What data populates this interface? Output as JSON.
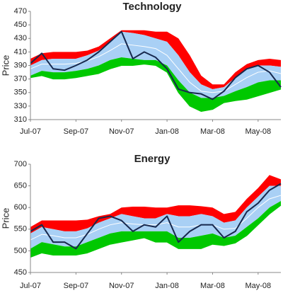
{
  "chart_data": [
    {
      "type": "band-line",
      "title": "Technology",
      "y_label": "Price",
      "x": [
        0,
        0.5,
        1,
        1.5,
        2,
        2.5,
        3,
        3.5,
        4,
        4.5,
        5,
        5.5,
        6,
        6.5,
        7,
        7.5,
        8,
        8.5,
        9,
        9.5,
        10,
        10.5,
        11
      ],
      "xlim": [
        0,
        11
      ],
      "xticks": [
        {
          "value": 0,
          "label": "Jul-07"
        },
        {
          "value": 2,
          "label": "Sep-07"
        },
        {
          "value": 4,
          "label": "Nov-07"
        },
        {
          "value": 6,
          "label": "Jan-08"
        },
        {
          "value": 8,
          "label": "Mar-08"
        },
        {
          "value": 10,
          "label": "May-08"
        }
      ],
      "ylim": [
        310,
        470
      ],
      "yticks": [
        310,
        330,
        350,
        370,
        390,
        410,
        430,
        450,
        470
      ],
      "grid": false,
      "series": [
        {
          "style": "band",
          "color": "#ff0000",
          "values": [
            400,
            408,
            410,
            410,
            410,
            412,
            418,
            430,
            442,
            442,
            442,
            440,
            440,
            430,
            405,
            375,
            362,
            362,
            380,
            392,
            398,
            400,
            398
          ]
        },
        {
          "style": "band",
          "color": "#a9d0f5",
          "values": [
            390,
            398,
            400,
            400,
            400,
            405,
            412,
            425,
            440,
            438,
            435,
            430,
            425,
            405,
            380,
            362,
            355,
            358,
            372,
            385,
            390,
            390,
            388
          ]
        },
        {
          "style": "line",
          "color": "#ffffff",
          "values": [
            385,
            392,
            392,
            392,
            393,
            397,
            403,
            412,
            422,
            420,
            418,
            415,
            405,
            385,
            365,
            352,
            350,
            352,
            362,
            372,
            380,
            382,
            378
          ]
        },
        {
          "style": "band",
          "color": "#00c800",
          "values": [
            375,
            382,
            380,
            380,
            382,
            385,
            390,
            398,
            402,
            400,
            398,
            398,
            390,
            368,
            350,
            342,
            342,
            345,
            352,
            358,
            365,
            368,
            368
          ]
        },
        {
          "style": "edge",
          "color": "#00c800",
          "values": [
            372,
            375,
            370,
            370,
            372,
            375,
            378,
            385,
            390,
            390,
            392,
            390,
            380,
            350,
            330,
            322,
            325,
            335,
            338,
            340,
            345,
            350,
            355
          ]
        },
        {
          "style": "line",
          "color": "#17284d",
          "values": [
            393,
            408,
            385,
            383,
            390,
            398,
            410,
            425,
            440,
            400,
            410,
            402,
            385,
            355,
            350,
            348,
            340,
            352,
            372,
            385,
            390,
            380,
            358
          ]
        }
      ]
    },
    {
      "type": "band-line",
      "title": "Energy",
      "y_label": "Price",
      "x": [
        0,
        0.5,
        1,
        1.5,
        2,
        2.5,
        3,
        3.5,
        4,
        4.5,
        5,
        5.5,
        6,
        6.5,
        7,
        7.5,
        8,
        8.5,
        9,
        9.5,
        10,
        10.5,
        11
      ],
      "xlim": [
        0,
        11
      ],
      "xticks": [
        {
          "value": 0,
          "label": "Jul-07"
        },
        {
          "value": 2,
          "label": "Sep-07"
        },
        {
          "value": 4,
          "label": "Nov-07"
        },
        {
          "value": 6,
          "label": "Jan-08"
        },
        {
          "value": 8,
          "label": "Mar-08"
        },
        {
          "value": 10,
          "label": "May-08"
        }
      ],
      "ylim": [
        450,
        700
      ],
      "yticks": [
        450,
        500,
        550,
        600,
        650,
        700
      ],
      "grid": false,
      "series": [
        {
          "style": "band",
          "color": "#ff0000",
          "values": [
            555,
            570,
            570,
            570,
            570,
            572,
            580,
            585,
            600,
            602,
            602,
            600,
            600,
            605,
            605,
            603,
            600,
            585,
            590,
            620,
            645,
            675,
            665
          ]
        },
        {
          "style": "band",
          "color": "#a9d0f5",
          "values": [
            540,
            555,
            550,
            545,
            545,
            552,
            565,
            575,
            585,
            580,
            575,
            575,
            585,
            580,
            580,
            585,
            580,
            565,
            570,
            600,
            625,
            650,
            650
          ]
        },
        {
          "style": "line",
          "color": "#ffffff",
          "values": [
            525,
            538,
            535,
            530,
            530,
            538,
            550,
            560,
            565,
            562,
            560,
            560,
            565,
            555,
            555,
            560,
            560,
            550,
            552,
            575,
            600,
            620,
            628
          ]
        },
        {
          "style": "band",
          "color": "#00c800",
          "values": [
            505,
            520,
            515,
            510,
            510,
            520,
            530,
            540,
            545,
            545,
            545,
            545,
            545,
            530,
            530,
            535,
            540,
            530,
            535,
            555,
            575,
            600,
            615
          ]
        },
        {
          "style": "edge",
          "color": "#00c800",
          "values": [
            485,
            495,
            490,
            490,
            490,
            495,
            505,
            515,
            520,
            525,
            530,
            520,
            520,
            505,
            505,
            505,
            515,
            512,
            518,
            535,
            560,
            585,
            605
          ]
        },
        {
          "style": "line",
          "color": "#17284d",
          "values": [
            545,
            560,
            520,
            520,
            505,
            540,
            575,
            580,
            570,
            545,
            560,
            555,
            580,
            520,
            545,
            560,
            560,
            530,
            545,
            590,
            610,
            640,
            655
          ]
        }
      ]
    }
  ]
}
